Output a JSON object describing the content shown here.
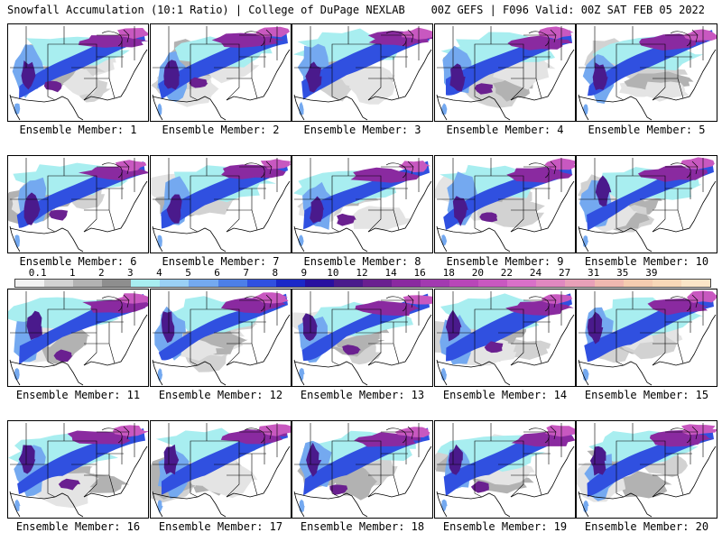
{
  "header": {
    "left": "Snowfall Accumulation (10:1 Ratio) | College of DuPage NEXLAB",
    "right": "00Z GEFS | F096 Valid: 00Z SAT FEB 05 2022"
  },
  "members": [
    "Ensemble Member: 1",
    "Ensemble Member: 2",
    "Ensemble Member: 3",
    "Ensemble Member: 4",
    "Ensemble Member: 5",
    "Ensemble Member: 6",
    "Ensemble Member: 7",
    "Ensemble Member: 8",
    "Ensemble Member: 9",
    "Ensemble Member: 10",
    "Ensemble Member: 11",
    "Ensemble Member: 12",
    "Ensemble Member: 13",
    "Ensemble Member: 14",
    "Ensemble Member: 15",
    "Ensemble Member: 16",
    "Ensemble Member: 17",
    "Ensemble Member: 18",
    "Ensemble Member: 19",
    "Ensemble Member: 20"
  ],
  "colorbar": {
    "labels": [
      "0.1",
      "1",
      "2",
      "3",
      "4",
      "5",
      "6",
      "7",
      "8",
      "9",
      "10",
      "12",
      "14",
      "16",
      "18",
      "20",
      "22",
      "24",
      "27",
      "31",
      "35",
      "39"
    ],
    "colors": [
      "#f2f2f2",
      "#d2d2d2",
      "#b2b2b2",
      "#8e8e8e",
      "#a8eef0",
      "#9ad0f5",
      "#74a9f0",
      "#4d7fe8",
      "#3050e0",
      "#1a28c8",
      "#2810a0",
      "#4a1a8c",
      "#6a2090",
      "#8a2aa0",
      "#a23ab0",
      "#b846b8",
      "#c858c0",
      "#d870c8",
      "#e088c0",
      "#e8a0b8",
      "#f0b8b0",
      "#f5ccb0",
      "#f8d8b8",
      "#fbe6c8"
    ]
  },
  "map_style": {
    "land": "#ffffff",
    "coast": "#000000",
    "border": "#000000"
  }
}
